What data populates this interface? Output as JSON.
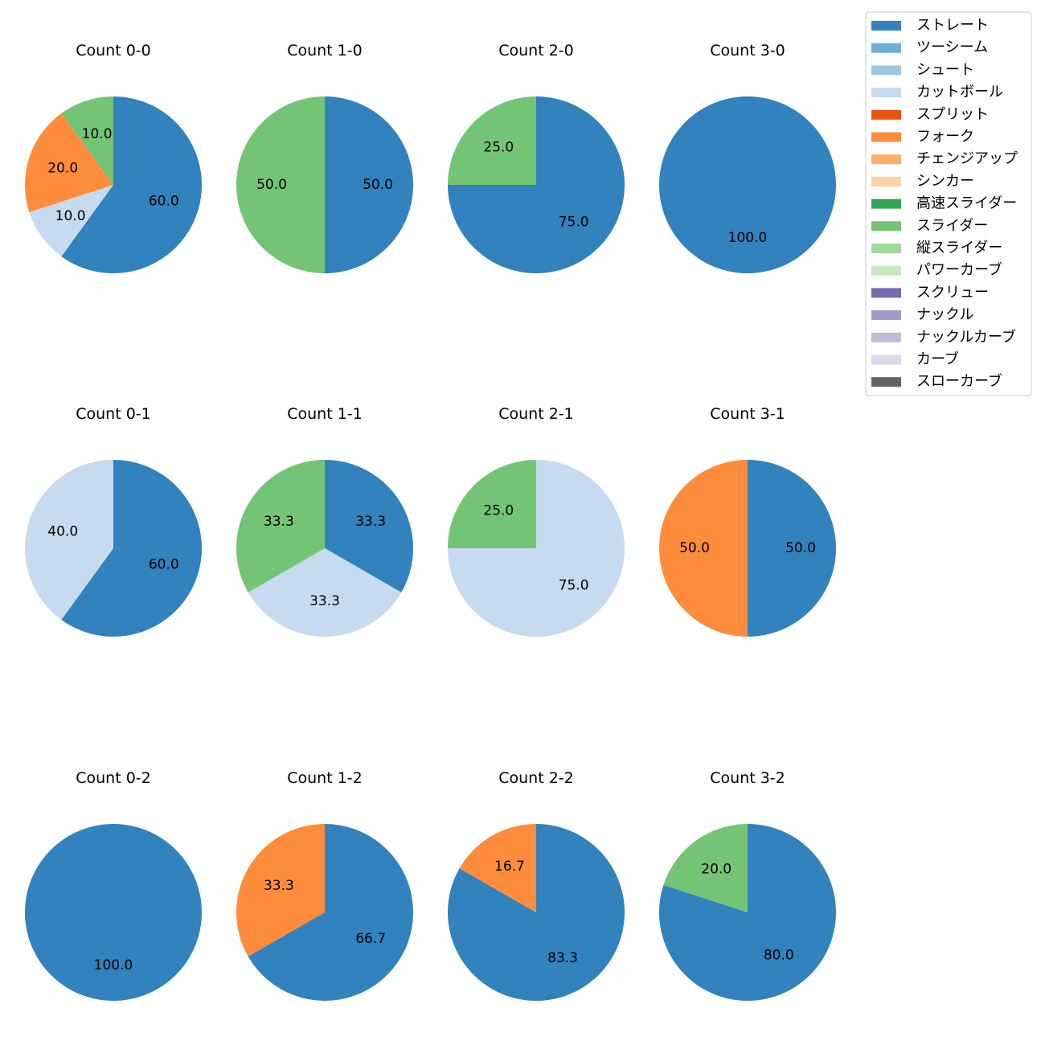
{
  "chart_data": {
    "type": "pie",
    "legend_placement": "top-right",
    "legend": [
      {
        "name": "ストレート",
        "color": "#3182bd"
      },
      {
        "name": "ツーシーム",
        "color": "#6baed6"
      },
      {
        "name": "シュート",
        "color": "#9ecae1"
      },
      {
        "name": "カットボール",
        "color": "#c6dbef"
      },
      {
        "name": "スプリット",
        "color": "#e6550d"
      },
      {
        "name": "フォーク",
        "color": "#fd8d3c"
      },
      {
        "name": "チェンジアップ",
        "color": "#fdae6b"
      },
      {
        "name": "シンカー",
        "color": "#fdd0a2"
      },
      {
        "name": "高速スライダー",
        "color": "#31a354"
      },
      {
        "name": "スライダー",
        "color": "#74c476"
      },
      {
        "name": "縦スライダー",
        "color": "#a1d99b"
      },
      {
        "name": "パワーカーブ",
        "color": "#c7e9c0"
      },
      {
        "name": "スクリュー",
        "color": "#756bb1"
      },
      {
        "name": "ナックル",
        "color": "#9e9ac8"
      },
      {
        "name": "ナックルカーブ",
        "color": "#bcbddc"
      },
      {
        "name": "カーブ",
        "color": "#dadaeb"
      },
      {
        "name": "スローカーブ",
        "color": "#636363"
      }
    ],
    "charts": [
      {
        "title": "Count 0-0",
        "slices": [
          {
            "pitch": "ストレート",
            "value": 60.0,
            "label": "60.0"
          },
          {
            "pitch": "カットボール",
            "value": 10.0,
            "label": "10.0"
          },
          {
            "pitch": "フォーク",
            "value": 20.0,
            "label": "20.0"
          },
          {
            "pitch": "スライダー",
            "value": 10.0,
            "label": "10.0"
          }
        ]
      },
      {
        "title": "Count 1-0",
        "slices": [
          {
            "pitch": "ストレート",
            "value": 50.0,
            "label": "50.0"
          },
          {
            "pitch": "スライダー",
            "value": 50.0,
            "label": "50.0"
          }
        ]
      },
      {
        "title": "Count 2-0",
        "slices": [
          {
            "pitch": "ストレート",
            "value": 75.0,
            "label": "75.0"
          },
          {
            "pitch": "スライダー",
            "value": 25.0,
            "label": "25.0"
          }
        ]
      },
      {
        "title": "Count 3-0",
        "slices": [
          {
            "pitch": "ストレート",
            "value": 100.0,
            "label": "100.0"
          }
        ]
      },
      {
        "title": "Count 0-1",
        "slices": [
          {
            "pitch": "ストレート",
            "value": 60.0,
            "label": "60.0"
          },
          {
            "pitch": "カットボール",
            "value": 40.0,
            "label": "40.0"
          }
        ]
      },
      {
        "title": "Count 1-1",
        "slices": [
          {
            "pitch": "ストレート",
            "value": 33.3,
            "label": "33.3"
          },
          {
            "pitch": "カットボール",
            "value": 33.3,
            "label": "33.3"
          },
          {
            "pitch": "スライダー",
            "value": 33.3,
            "label": "33.3"
          }
        ]
      },
      {
        "title": "Count 2-1",
        "slices": [
          {
            "pitch": "カットボール",
            "value": 75.0,
            "label": "75.0"
          },
          {
            "pitch": "スライダー",
            "value": 25.0,
            "label": "25.0"
          }
        ]
      },
      {
        "title": "Count 3-1",
        "slices": [
          {
            "pitch": "ストレート",
            "value": 50.0,
            "label": "50.0"
          },
          {
            "pitch": "フォーク",
            "value": 50.0,
            "label": "50.0"
          }
        ]
      },
      {
        "title": "Count 0-2",
        "slices": [
          {
            "pitch": "ストレート",
            "value": 100.0,
            "label": "100.0"
          }
        ]
      },
      {
        "title": "Count 1-2",
        "slices": [
          {
            "pitch": "ストレート",
            "value": 66.7,
            "label": "66.7"
          },
          {
            "pitch": "フォーク",
            "value": 33.3,
            "label": "33.3"
          }
        ]
      },
      {
        "title": "Count 2-2",
        "slices": [
          {
            "pitch": "ストレート",
            "value": 83.3,
            "label": "83.3"
          },
          {
            "pitch": "フォーク",
            "value": 16.7,
            "label": "16.7"
          }
        ]
      },
      {
        "title": "Count 3-2",
        "slices": [
          {
            "pitch": "ストレート",
            "value": 80.0,
            "label": "80.0"
          },
          {
            "pitch": "スライダー",
            "value": 20.0,
            "label": "20.0"
          }
        ]
      }
    ]
  }
}
